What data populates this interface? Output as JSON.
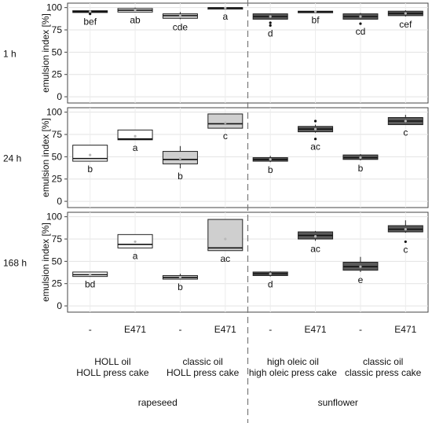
{
  "chart_data": {
    "type": "box",
    "ylabel": "emulsion index [%]",
    "yticks": [
      0,
      25,
      50,
      75,
      100
    ],
    "ylim": [
      -7,
      105
    ],
    "grid": true,
    "categories": [
      "-",
      "E471",
      "-",
      "E471",
      "-",
      "E471",
      "-",
      "E471"
    ],
    "group_labels": [
      [
        "HOLL oil",
        "HOLL press cake"
      ],
      [
        "classic oil",
        "HOLL press cake"
      ],
      [
        "high oleic oil",
        "high oleic press cake"
      ],
      [
        "classic oil",
        "classic press cake"
      ]
    ],
    "species": [
      "rapeseed",
      "sunflower"
    ],
    "colors": {
      "rapeseed_minus": "#ffffff",
      "rapeseed_E471": "#ffffff",
      "rapeseed_classic": "#cfcfcf",
      "sunflower_high_oleic": "#5a5a5a",
      "sunflower_classic": "#5a5a5a"
    },
    "panels": [
      {
        "label": "1 h",
        "boxes": [
          {
            "q1": 94.5,
            "median": 95.5,
            "q3": 96.5,
            "wlo": 94,
            "whi": 97,
            "mean": 95.5,
            "outliers": [
              93
            ],
            "letter": "bef",
            "fill": "#ffffff"
          },
          {
            "q1": 95,
            "median": 97,
            "q3": 99,
            "wlo": 95,
            "whi": 100,
            "mean": 97.5,
            "outliers": [],
            "letter": "ab",
            "fill": "#ffffff"
          },
          {
            "q1": 88,
            "median": 91,
            "q3": 93,
            "wlo": 87,
            "whi": 95,
            "mean": 90.5,
            "outliers": [],
            "letter": "cde",
            "fill": "#cfcfcf"
          },
          {
            "q1": 99,
            "median": 99.5,
            "q3": 100,
            "wlo": 99,
            "whi": 100,
            "mean": 99.5,
            "outliers": [],
            "letter": "a",
            "fill": "#cfcfcf"
          },
          {
            "q1": 87,
            "median": 90,
            "q3": 93,
            "wlo": 87,
            "whi": 93,
            "mean": 90,
            "outliers": [
              83,
              80
            ],
            "letter": "d",
            "fill": "#5a5a5a"
          },
          {
            "q1": 95,
            "median": 95.5,
            "q3": 96,
            "wlo": 95,
            "whi": 96,
            "mean": 95.5,
            "outliers": [],
            "letter": "bf",
            "fill": "#5a5a5a"
          },
          {
            "q1": 87,
            "median": 90,
            "q3": 93,
            "wlo": 87,
            "whi": 94,
            "mean": 90,
            "outliers": [
              82
            ],
            "letter": "cd",
            "fill": "#5a5a5a"
          },
          {
            "q1": 91,
            "median": 93.5,
            "q3": 96,
            "wlo": 90,
            "whi": 97,
            "mean": 93.5,
            "outliers": [],
            "letter": "cef",
            "fill": "#5a5a5a"
          }
        ]
      },
      {
        "label": "24 h",
        "boxes": [
          {
            "q1": 45,
            "median": 48,
            "q3": 63,
            "wlo": 45,
            "whi": 63,
            "mean": 52,
            "outliers": [],
            "letter": "b",
            "fill": "#ffffff"
          },
          {
            "q1": 69,
            "median": 70,
            "q3": 80,
            "wlo": 69,
            "whi": 80,
            "mean": 73,
            "outliers": [],
            "letter": "a",
            "fill": "#ffffff"
          },
          {
            "q1": 42,
            "median": 47,
            "q3": 56,
            "wlo": 37,
            "whi": 62,
            "mean": 48,
            "outliers": [],
            "letter": "b",
            "fill": "#cfcfcf"
          },
          {
            "q1": 82,
            "median": 87,
            "q3": 98,
            "wlo": 82,
            "whi": 98,
            "mean": 88,
            "outliers": [],
            "letter": "c",
            "fill": "#cfcfcf"
          },
          {
            "q1": 45,
            "median": 47,
            "q3": 49,
            "wlo": 44,
            "whi": 51,
            "mean": 47,
            "outliers": [],
            "letter": "b",
            "fill": "#5a5a5a"
          },
          {
            "q1": 78,
            "median": 81,
            "q3": 84,
            "wlo": 77,
            "whi": 86,
            "mean": 81,
            "outliers": [
              90,
              70
            ],
            "letter": "ac",
            "fill": "#5a5a5a"
          },
          {
            "q1": 47,
            "median": 49,
            "q3": 52,
            "wlo": 46,
            "whi": 53,
            "mean": 49,
            "outliers": [],
            "letter": "b",
            "fill": "#5a5a5a"
          },
          {
            "q1": 86,
            "median": 90,
            "q3": 94,
            "wlo": 86,
            "whi": 97,
            "mean": 90,
            "outliers": [],
            "letter": "c",
            "fill": "#5a5a5a"
          }
        ]
      },
      {
        "label": "168 h",
        "boxes": [
          {
            "q1": 33,
            "median": 35,
            "q3": 38,
            "wlo": 33,
            "whi": 38,
            "mean": 35,
            "outliers": [],
            "letter": "bd",
            "fill": "#ffffff"
          },
          {
            "q1": 65,
            "median": 69,
            "q3": 80,
            "wlo": 65,
            "whi": 80,
            "mean": 72,
            "outliers": [],
            "letter": "a",
            "fill": "#ffffff"
          },
          {
            "q1": 30,
            "median": 32,
            "q3": 34,
            "wlo": 30,
            "whi": 36,
            "mean": 32,
            "outliers": [],
            "letter": "b",
            "fill": "#cfcfcf"
          },
          {
            "q1": 62,
            "median": 65,
            "q3": 97,
            "wlo": 62,
            "whi": 97,
            "mean": 75,
            "outliers": [],
            "letter": "ac",
            "fill": "#cfcfcf"
          },
          {
            "q1": 34,
            "median": 36,
            "q3": 38,
            "wlo": 33,
            "whi": 39,
            "mean": 36,
            "outliers": [],
            "letter": "d",
            "fill": "#5a5a5a"
          },
          {
            "q1": 75,
            "median": 79,
            "q3": 83,
            "wlo": 73,
            "whi": 84,
            "mean": 78,
            "outliers": [],
            "letter": "ac",
            "fill": "#5a5a5a"
          },
          {
            "q1": 40,
            "median": 44,
            "q3": 49,
            "wlo": 38,
            "whi": 55,
            "mean": 44,
            "outliers": [],
            "letter": "e",
            "fill": "#5a5a5a"
          },
          {
            "q1": 83,
            "median": 86,
            "q3": 90,
            "wlo": 82,
            "whi": 96,
            "mean": 86,
            "outliers": [
              72
            ],
            "letter": "c",
            "fill": "#5a5a5a"
          }
        ]
      }
    ]
  }
}
